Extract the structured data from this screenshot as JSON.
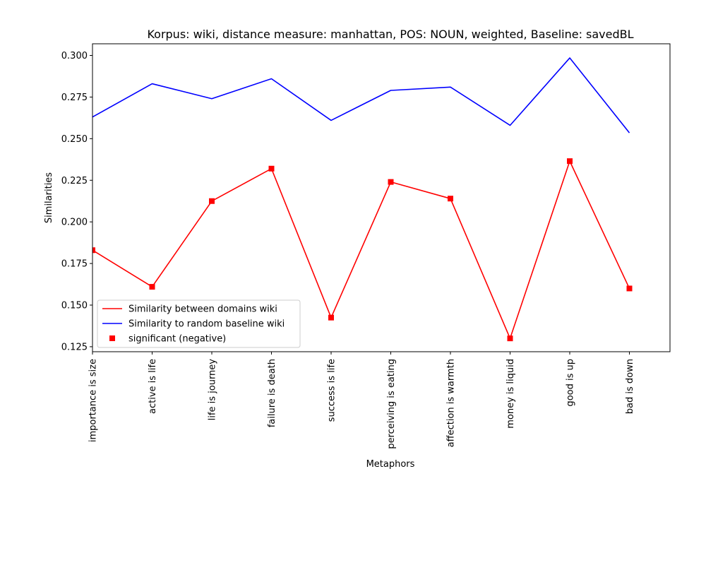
{
  "chart_data": {
    "type": "line",
    "title": "Korpus: wiki, distance measure: manhattan, POS: NOUN, weighted, Baseline: savedBL",
    "xlabel": "Metaphors",
    "ylabel": "Similarities",
    "categories": [
      "importance is size",
      "active is life",
      "life is journey",
      "failure is death",
      "success is life",
      "perceiving is eating",
      "affection is warmth",
      "money is liquid",
      "good is up",
      "bad is down"
    ],
    "ylim": [
      0.122,
      0.307
    ],
    "yticks": [
      "0.125",
      "0.150",
      "0.175",
      "0.200",
      "0.225",
      "0.250",
      "0.275",
      "0.300"
    ],
    "series": [
      {
        "name": "Similarity between domains wiki",
        "color": "#ff0000",
        "marker": "none",
        "values": [
          0.183,
          0.161,
          0.2125,
          0.232,
          0.1425,
          0.224,
          0.214,
          0.13,
          0.2365,
          0.16
        ]
      },
      {
        "name": "Similarity to random baseline wiki",
        "color": "#0000ff",
        "marker": "none",
        "values": [
          0.263,
          0.283,
          0.274,
          0.286,
          0.261,
          0.279,
          0.281,
          0.258,
          0.2985,
          0.2535
        ]
      },
      {
        "name": "significant (negative)",
        "color": "#ff0000",
        "marker": "square",
        "line": false,
        "values": [
          0.183,
          0.161,
          0.2125,
          0.232,
          0.1425,
          0.224,
          0.214,
          0.13,
          0.2365,
          0.16
        ]
      }
    ],
    "grid": false,
    "legend_position": "lower-left"
  }
}
